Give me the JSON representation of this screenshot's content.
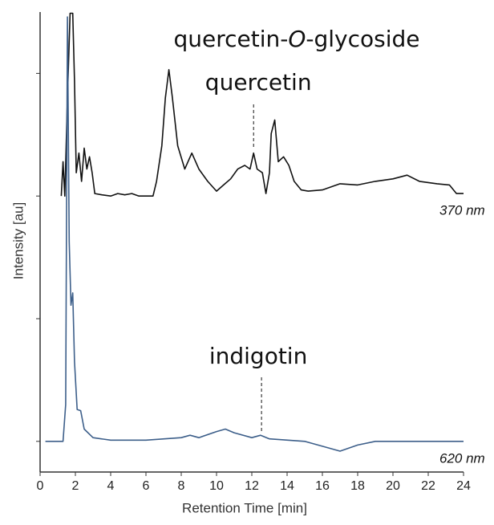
{
  "chart_data": {
    "type": "line",
    "x_label": "Retention Time [min]",
    "y_label": "Intensity [au]",
    "xlim": [
      0,
      24
    ],
    "xticks": [
      0,
      2,
      4,
      6,
      8,
      10,
      12,
      14,
      16,
      18,
      20,
      22,
      24
    ],
    "ylim": [
      -0.25,
      3.5
    ],
    "yticks": [
      0,
      1,
      2,
      3
    ],
    "series": [
      {
        "name": "370 nm",
        "color": "#111111",
        "x": [
          1.2,
          1.3,
          1.4,
          1.55,
          1.7,
          1.85,
          1.95,
          2.05,
          2.2,
          2.35,
          2.5,
          2.65,
          2.8,
          2.95,
          3.1,
          3.5,
          4.0,
          4.4,
          4.8,
          5.2,
          5.6,
          6.4,
          6.6,
          6.9,
          7.1,
          7.3,
          7.5,
          7.8,
          8.2,
          8.6,
          9.0,
          9.5,
          10.0,
          10.4,
          10.8,
          11.2,
          11.6,
          11.9,
          12.1,
          12.3,
          12.6,
          12.8,
          13.0,
          13.1,
          13.3,
          13.5,
          13.8,
          14.1,
          14.4,
          14.8,
          15.2,
          16,
          17,
          18,
          19,
          20,
          20.8,
          21.5,
          22.5,
          23.2,
          23.6,
          24
        ],
        "values": [
          2.0,
          2.28,
          2.0,
          2.8,
          3.49,
          3.49,
          2.94,
          2.19,
          2.35,
          2.12,
          2.39,
          2.22,
          2.32,
          2.19,
          2.02,
          2.01,
          2.0,
          2.02,
          2.01,
          2.02,
          2.0,
          2.0,
          2.12,
          2.41,
          2.8,
          3.03,
          2.8,
          2.41,
          2.22,
          2.35,
          2.22,
          2.12,
          2.04,
          2.09,
          2.14,
          2.22,
          2.25,
          2.22,
          2.35,
          2.22,
          2.19,
          2.02,
          2.19,
          2.51,
          2.62,
          2.28,
          2.32,
          2.25,
          2.12,
          2.05,
          2.04,
          2.05,
          2.1,
          2.09,
          2.12,
          2.14,
          2.17,
          2.12,
          2.1,
          2.09,
          2.02,
          2.02
        ]
      },
      {
        "name": "620 nm",
        "color": "#3d5f8a",
        "x": [
          0.3,
          1.3,
          1.45,
          1.55,
          1.65,
          1.75,
          1.85,
          1.95,
          2.1,
          2.3,
          2.5,
          3,
          4,
          6,
          8,
          8.5,
          9,
          10,
          10.5,
          11,
          12,
          12.5,
          13,
          15,
          16,
          17,
          18,
          19,
          24
        ],
        "values": [
          0,
          0,
          0.3,
          3.46,
          1.63,
          1.11,
          1.21,
          0.65,
          0.26,
          0.25,
          0.1,
          0.03,
          0.01,
          0.01,
          0.03,
          0.05,
          0.03,
          0.08,
          0.1,
          0.07,
          0.03,
          0.05,
          0.02,
          0,
          -0.04,
          -0.08,
          -0.03,
          0,
          0
        ]
      }
    ],
    "annotations": [
      {
        "text": [
          "quercetin-",
          "O",
          "-glycoside"
        ]
      },
      {
        "text": "quercetin",
        "x": 12.1
      },
      {
        "text": "indigotin",
        "x": 12.55
      }
    ]
  }
}
